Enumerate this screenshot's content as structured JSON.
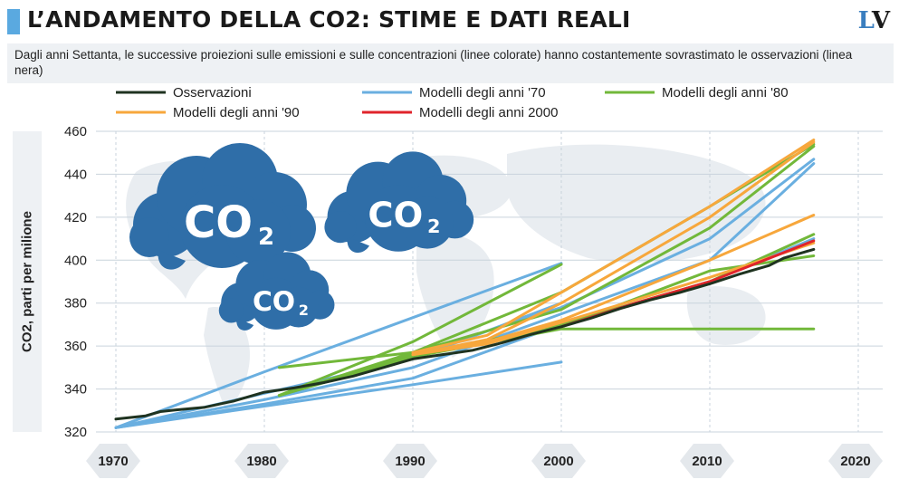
{
  "header": {
    "title": "L’ANDAMENTO DELLA CO2: STIME E DATI REALI",
    "logo_l": "L",
    "logo_v": "V"
  },
  "subtitle": "Dagli anni Settanta, le successive proiezioni sulle emissioni e sulle concentrazioni (linee colorate) hanno costantemente sovrastimato le osservazioni (linea nera)",
  "clouds": {
    "text": "CO",
    "sub": "2"
  },
  "colors": {
    "observations": "#1f3320",
    "models70": "#6aafe0",
    "models80": "#72b83a",
    "models90": "#f7a73c",
    "models2000": "#e0242b",
    "grid": "#c9d3dc",
    "cloud": "#2f6ea8",
    "hex": "#e4e8ec",
    "map": "#e9edf1"
  },
  "chart_data": {
    "type": "line",
    "title": "L’ANDAMENTO DELLA CO2: STIME E DATI REALI",
    "ylabel": "CO2, parti per milione",
    "xlabel": "",
    "xlim": [
      1968,
      2022
    ],
    "ylim": [
      320,
      460
    ],
    "x_ticks": [
      1970,
      1980,
      1990,
      2000,
      2010,
      2020
    ],
    "y_ticks": [
      320,
      340,
      360,
      380,
      400,
      420,
      440,
      460
    ],
    "grid": true,
    "legend_position": "top",
    "legend": [
      {
        "label": "Osservazioni",
        "color_key": "observations"
      },
      {
        "label": "Modelli degli anni '70",
        "color_key": "models70"
      },
      {
        "label": "Modelli degli anni '80",
        "color_key": "models80"
      },
      {
        "label": "Modelli degli anni '90",
        "color_key": "models90"
      },
      {
        "label": "Modelli degli anni 2000",
        "color_key": "models2000"
      }
    ],
    "series": [
      {
        "name": "Osservazioni",
        "color_key": "observations",
        "width": 3,
        "points": [
          [
            1970,
            326
          ],
          [
            1972,
            327.5
          ],
          [
            1973,
            329.5
          ],
          [
            1974,
            330.2
          ],
          [
            1976,
            331.5
          ],
          [
            1978,
            334.5
          ],
          [
            1980,
            338.5
          ],
          [
            1982,
            340.5
          ],
          [
            1984,
            343
          ],
          [
            1986,
            346
          ],
          [
            1988,
            350
          ],
          [
            1990,
            354
          ],
          [
            1992,
            356
          ],
          [
            1994,
            358
          ],
          [
            1996,
            361.5
          ],
          [
            1998,
            365.5
          ],
          [
            2000,
            369
          ],
          [
            2002,
            373
          ],
          [
            2004,
            377.5
          ],
          [
            2006,
            381.5
          ],
          [
            2008,
            385
          ],
          [
            2010,
            389
          ],
          [
            2012,
            393.5
          ],
          [
            2014,
            397.5
          ],
          [
            2015,
            401
          ],
          [
            2017,
            405
          ]
        ]
      },
      {
        "name": "Modelli degli anni '70",
        "color_key": "models70",
        "width": 3,
        "points": [
          [
            1970,
            322
          ],
          [
            1980,
            348
          ],
          [
            2000,
            398.5
          ]
        ]
      },
      {
        "name": "Modelli degli anni '70",
        "color_key": "models70",
        "width": 3,
        "points": [
          [
            1970,
            322
          ],
          [
            1980,
            338
          ],
          [
            1990,
            354
          ],
          [
            2000,
            380
          ]
        ]
      },
      {
        "name": "Modelli degli anni '70",
        "color_key": "models70",
        "width": 3,
        "points": [
          [
            1970,
            322
          ],
          [
            1980,
            335
          ],
          [
            1990,
            350
          ],
          [
            2000,
            375
          ],
          [
            2010,
            400
          ],
          [
            2017,
            445
          ]
        ]
      },
      {
        "name": "Modelli degli anni '70",
        "color_key": "models70",
        "width": 3,
        "points": [
          [
            1970,
            322
          ],
          [
            1980,
            333
          ],
          [
            1990,
            345
          ],
          [
            2000,
            370
          ],
          [
            2010,
            390
          ],
          [
            2017,
            410
          ]
        ]
      },
      {
        "name": "Modelli degli anni '70",
        "color_key": "models70",
        "width": 3,
        "points": [
          [
            1970,
            322
          ],
          [
            1980,
            332
          ],
          [
            1990,
            342
          ],
          [
            2000,
            352.5
          ]
        ]
      },
      {
        "name": "Modelli degli anni '70",
        "color_key": "models70",
        "width": 3,
        "points": [
          [
            1990,
            356
          ],
          [
            2000,
            378
          ],
          [
            2010,
            410
          ],
          [
            2017,
            447
          ]
        ]
      },
      {
        "name": "Modelli degli anni '80",
        "color_key": "models80",
        "width": 3,
        "points": [
          [
            1981,
            350
          ],
          [
            1990,
            357
          ],
          [
            2000,
            377
          ],
          [
            2010,
            415
          ],
          [
            2017,
            453
          ]
        ]
      },
      {
        "name": "Modelli degli anni '80",
        "color_key": "models80",
        "width": 3,
        "points": [
          [
            1981,
            337
          ],
          [
            1990,
            357
          ],
          [
            2000,
            385
          ],
          [
            2010,
            425
          ],
          [
            2017,
            454
          ]
        ]
      },
      {
        "name": "Modelli degli anni '80",
        "color_key": "models80",
        "width": 3,
        "points": [
          [
            1981,
            337
          ],
          [
            1990,
            355
          ],
          [
            2000,
            370
          ],
          [
            2010,
            390
          ],
          [
            2017,
            412
          ]
        ]
      },
      {
        "name": "Modelli degli anni '80",
        "color_key": "models80",
        "width": 3,
        "points": [
          [
            1981,
            337
          ],
          [
            1990,
            356
          ],
          [
            2000,
            369
          ],
          [
            2010,
            395
          ],
          [
            2017,
            402
          ]
        ]
      },
      {
        "name": "Modelli degli anni '80",
        "color_key": "models80",
        "width": 3,
        "points": [
          [
            1981,
            337
          ],
          [
            1990,
            355
          ],
          [
            2000,
            368
          ],
          [
            2017,
            368
          ]
        ]
      },
      {
        "name": "Modelli degli anni '80",
        "color_key": "models80",
        "width": 3,
        "points": [
          [
            1981,
            337
          ],
          [
            1990,
            362
          ],
          [
            2000,
            398
          ]
        ]
      },
      {
        "name": "Modelli degli anni '90",
        "color_key": "models90",
        "width": 3,
        "points": [
          [
            1990,
            357
          ],
          [
            1995,
            365
          ],
          [
            2000,
            385
          ],
          [
            2010,
            425
          ],
          [
            2017,
            456
          ]
        ]
      },
      {
        "name": "Modelli degli anni '90",
        "color_key": "models90",
        "width": 3,
        "points": [
          [
            1990,
            356
          ],
          [
            1995,
            363
          ],
          [
            2000,
            380
          ],
          [
            2010,
            420
          ],
          [
            2017,
            455
          ]
        ]
      },
      {
        "name": "Modelli degli anni '90",
        "color_key": "models90",
        "width": 3,
        "points": [
          [
            1990,
            356
          ],
          [
            1995,
            362
          ],
          [
            2000,
            372
          ],
          [
            2010,
            400
          ],
          [
            2017,
            421
          ]
        ]
      },
      {
        "name": "Modelli degli anni '90",
        "color_key": "models90",
        "width": 3,
        "points": [
          [
            1990,
            356
          ],
          [
            1995,
            361
          ],
          [
            2000,
            371
          ],
          [
            2010,
            392
          ],
          [
            2017,
            408
          ]
        ]
      },
      {
        "name": "Modelli degli anni 2000",
        "color_key": "models2000",
        "width": 3,
        "points": [
          [
            2000,
            369
          ],
          [
            2005,
            380
          ],
          [
            2010,
            390
          ],
          [
            2017,
            409
          ]
        ]
      }
    ]
  }
}
